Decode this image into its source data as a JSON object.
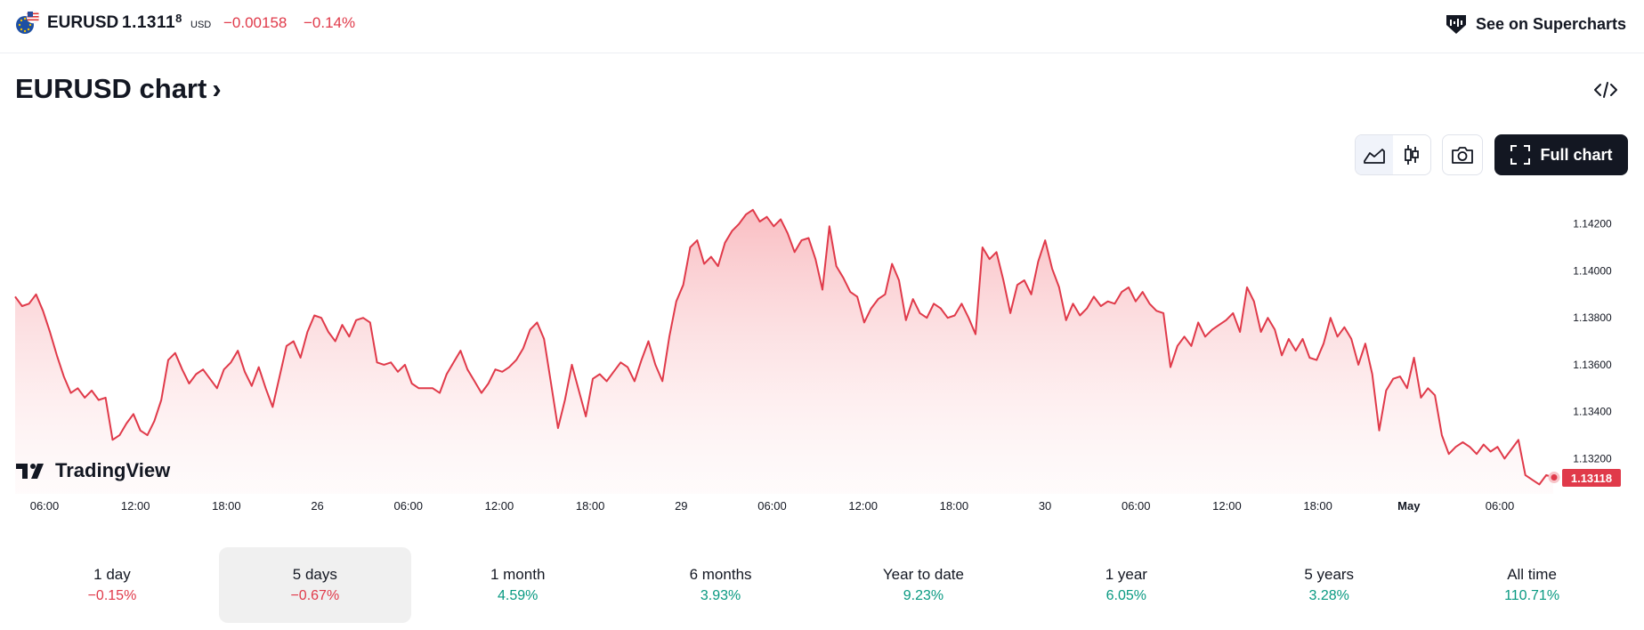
{
  "header": {
    "symbol": "EURUSD",
    "price_main": "1.1311",
    "price_sup": "8",
    "currency": "USD",
    "change": "−0.00158",
    "change_percent": "−0.14%",
    "supercharts_label": "See on Supercharts"
  },
  "page": {
    "title": "EURUSD chart",
    "title_chevron": "›"
  },
  "toolbar": {
    "full_chart_label": "Full chart"
  },
  "chart_data": {
    "type": "area",
    "brand": "TradingView",
    "last_price_label": "1.13118",
    "line_color": "#e03a4a",
    "ylim": [
      1.1305,
      1.1432
    ],
    "y_ticks": [
      1.142,
      1.14,
      1.138,
      1.136,
      1.134,
      1.132
    ],
    "y_tick_labels": [
      "1.14200",
      "1.14000",
      "1.13800",
      "1.13600",
      "1.13400",
      "1.13200"
    ],
    "x_tick_labels": [
      "06:00",
      "12:00",
      "18:00",
      "26",
      "06:00",
      "12:00",
      "18:00",
      "29",
      "06:00",
      "12:00",
      "18:00",
      "30",
      "06:00",
      "12:00",
      "18:00",
      "May",
      "06:00"
    ],
    "x_tick_bold": [
      false,
      false,
      false,
      false,
      false,
      false,
      false,
      false,
      false,
      false,
      false,
      false,
      false,
      false,
      false,
      true,
      false
    ],
    "values": [
      1.1389,
      1.1385,
      1.1386,
      1.139,
      1.1383,
      1.1374,
      1.1364,
      1.1355,
      1.1348,
      1.135,
      1.1346,
      1.1349,
      1.1345,
      1.1346,
      1.1328,
      1.133,
      1.1335,
      1.1339,
      1.1332,
      1.133,
      1.1336,
      1.1345,
      1.1362,
      1.1365,
      1.1358,
      1.1352,
      1.1356,
      1.1358,
      1.1354,
      1.135,
      1.1358,
      1.1361,
      1.1366,
      1.1357,
      1.1351,
      1.1359,
      1.135,
      1.1342,
      1.1355,
      1.1368,
      1.137,
      1.1363,
      1.1374,
      1.1381,
      1.138,
      1.1374,
      1.137,
      1.1377,
      1.1372,
      1.1379,
      1.138,
      1.1378,
      1.1361,
      1.136,
      1.1361,
      1.1357,
      1.136,
      1.1352,
      1.135,
      1.135,
      1.135,
      1.1348,
      1.1356,
      1.1361,
      1.1366,
      1.1358,
      1.1353,
      1.1348,
      1.1352,
      1.1358,
      1.1357,
      1.1359,
      1.1362,
      1.1367,
      1.1375,
      1.1378,
      1.1371,
      1.1352,
      1.1333,
      1.1345,
      1.136,
      1.1349,
      1.1338,
      1.1354,
      1.1356,
      1.1353,
      1.1357,
      1.1361,
      1.1359,
      1.1353,
      1.1362,
      1.137,
      1.136,
      1.1353,
      1.1372,
      1.1387,
      1.1394,
      1.141,
      1.1413,
      1.1403,
      1.1406,
      1.1402,
      1.1412,
      1.1417,
      1.142,
      1.1424,
      1.1426,
      1.1421,
      1.1423,
      1.1419,
      1.1422,
      1.1416,
      1.1408,
      1.1413,
      1.1414,
      1.1405,
      1.1392,
      1.1419,
      1.1402,
      1.1397,
      1.1391,
      1.1389,
      1.1378,
      1.1384,
      1.1388,
      1.139,
      1.1403,
      1.1396,
      1.1379,
      1.1388,
      1.1382,
      1.138,
      1.1386,
      1.1384,
      1.138,
      1.1381,
      1.1386,
      1.138,
      1.1373,
      1.141,
      1.1405,
      1.1408,
      1.1396,
      1.1382,
      1.1394,
      1.1396,
      1.139,
      1.1404,
      1.1413,
      1.1401,
      1.1393,
      1.1379,
      1.1386,
      1.1381,
      1.1384,
      1.1389,
      1.1385,
      1.1387,
      1.1386,
      1.1391,
      1.1393,
      1.1387,
      1.1391,
      1.1386,
      1.1383,
      1.1382,
      1.1359,
      1.1368,
      1.1372,
      1.1368,
      1.1378,
      1.1372,
      1.1375,
      1.1377,
      1.1379,
      1.1382,
      1.1374,
      1.1393,
      1.1387,
      1.1374,
      1.138,
      1.1375,
      1.1364,
      1.1371,
      1.1366,
      1.1371,
      1.1363,
      1.1362,
      1.1369,
      1.138,
      1.1372,
      1.1376,
      1.1371,
      1.136,
      1.1369,
      1.1356,
      1.1332,
      1.1349,
      1.1354,
      1.1355,
      1.135,
      1.1363,
      1.1346,
      1.135,
      1.1347,
      1.133,
      1.1322,
      1.1325,
      1.1327,
      1.1325,
      1.1322,
      1.1326,
      1.1323,
      1.1325,
      1.132,
      1.1324,
      1.1328,
      1.1313,
      1.1311,
      1.1309,
      1.1313,
      1.1312
    ]
  },
  "ranges": [
    {
      "label": "1 day",
      "value": "−0.15%",
      "dir": "neg"
    },
    {
      "label": "5 days",
      "value": "−0.67%",
      "dir": "neg"
    },
    {
      "label": "1 month",
      "value": "4.59%",
      "dir": "pos"
    },
    {
      "label": "6 months",
      "value": "3.93%",
      "dir": "pos"
    },
    {
      "label": "Year to date",
      "value": "9.23%",
      "dir": "pos"
    },
    {
      "label": "1 year",
      "value": "6.05%",
      "dir": "pos"
    },
    {
      "label": "5 years",
      "value": "3.28%",
      "dir": "pos"
    },
    {
      "label": "All time",
      "value": "110.71%",
      "dir": "pos"
    }
  ],
  "selected_range": 1
}
